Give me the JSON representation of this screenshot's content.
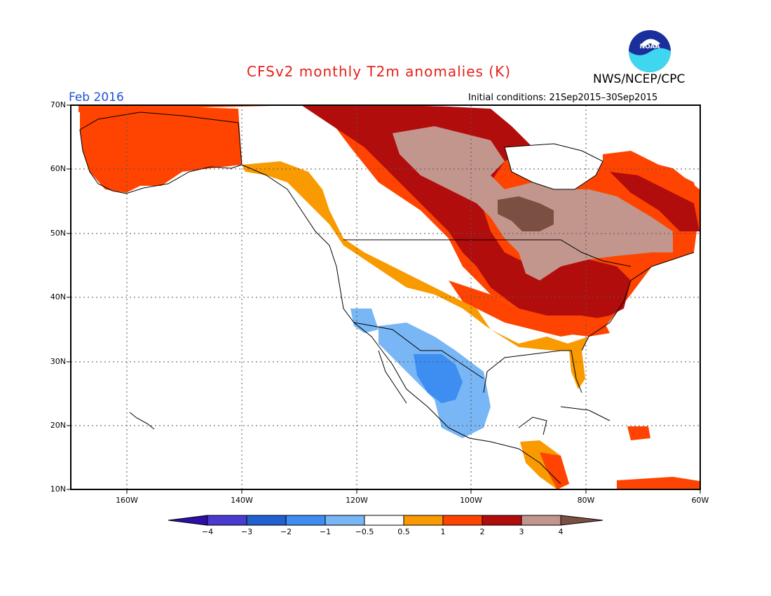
{
  "header": {
    "title": "CFSv2 monthly T2m anomalies (K)",
    "agency": "NWS/NCEP/CPC",
    "logo_text": "NOAA",
    "month": "Feb 2016",
    "initial_conditions": "Initial conditions: 21Sep2015–30Sep2015"
  },
  "axes": {
    "lat_labels": [
      "70N",
      "60N",
      "50N",
      "40N",
      "30N",
      "20N",
      "10N"
    ],
    "lon_labels": [
      "160W",
      "140W",
      "120W",
      "100W",
      "80W",
      "60W"
    ]
  },
  "colorbar": {
    "labels": [
      "−4",
      "−3",
      "−2",
      "−1",
      "−0.5",
      "0.5",
      "1",
      "2",
      "3",
      "4"
    ],
    "colors": [
      "#2b0fa8",
      "#4a3bd0",
      "#2060d0",
      "#3d8ef0",
      "#78b6f5",
      "#ffffff",
      "#f99a00",
      "#fe4400",
      "#b20d0d",
      "#c2968d",
      "#7b5043"
    ]
  },
  "colors": {
    "title": "#e8201a",
    "month": "#1e4fd8",
    "ocean": "#ffffff",
    "grid": "#555555"
  }
}
